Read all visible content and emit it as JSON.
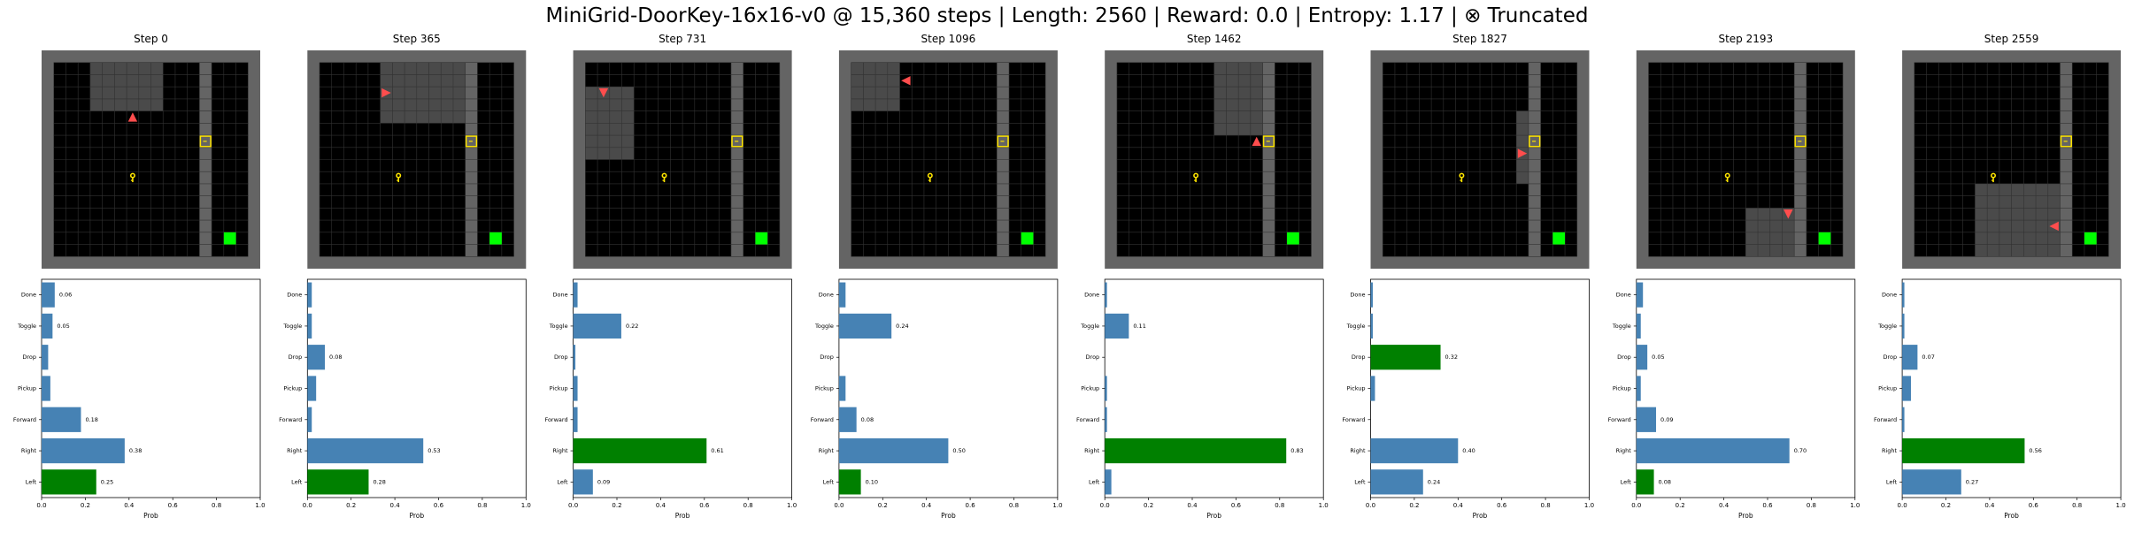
{
  "figure": {
    "title": "MiniGrid-DoorKey-16x16-v0 @ 15,360 steps | Length: 2560 | Reward: 0.0 | Entropy: 1.17 | ⊗ Truncated"
  },
  "colors": {
    "bar_default": "#4682b4",
    "bar_selected": "#008000",
    "wall": "#646464",
    "floor": "#000000",
    "view_floor": "#4a4a4a",
    "view_wall": "#a9a9a9",
    "grid_line": "#333333",
    "agent": "#ff4d4d",
    "key": "#ffe500",
    "door": "#ffe500",
    "goal": "#00ff00"
  },
  "env": {
    "grid_size": 16,
    "door_cell": [
      12,
      6
    ],
    "key_cell": [
      6,
      9
    ],
    "goal_cell": [
      14,
      14
    ],
    "wall_column": 12
  },
  "panels": [
    {
      "step_label": "Step 0",
      "agent": {
        "cell": [
          6,
          4
        ],
        "direction": "up"
      },
      "view": {
        "x0": 3,
        "y0": 0,
        "x1": 9,
        "y1": 4
      },
      "key_visible": true
    },
    {
      "step_label": "Step 365",
      "agent": {
        "cell": [
          5,
          2
        ],
        "direction": "right"
      },
      "view": {
        "x0": 5,
        "y0": 0,
        "x1": 12,
        "y1": 5
      },
      "key_visible": true
    },
    {
      "step_label": "Step 731",
      "agent": {
        "cell": [
          1,
          2
        ],
        "direction": "down"
      },
      "view": {
        "x0": 0,
        "y0": 2,
        "x1": 4,
        "y1": 8
      },
      "key_visible": true
    },
    {
      "step_label": "Step 1096",
      "agent": {
        "cell": [
          4,
          1
        ],
        "direction": "left"
      },
      "view": {
        "x0": 0,
        "y0": 0,
        "x1": 4,
        "y1": 4
      },
      "key_visible": true
    },
    {
      "step_label": "Step 1462",
      "agent": {
        "cell": [
          11,
          6
        ],
        "direction": "up"
      },
      "view": {
        "x0": 8,
        "y0": 0,
        "x1": 12,
        "y1": 6
      },
      "key_visible": true
    },
    {
      "step_label": "Step 1827",
      "agent": {
        "cell": [
          11,
          7
        ],
        "direction": "right"
      },
      "view": {
        "x0": 11,
        "y0": 4,
        "x1": 12,
        "y1": 10
      },
      "key_visible": true
    },
    {
      "step_label": "Step 2193",
      "agent": {
        "cell": [
          11,
          12
        ],
        "direction": "down"
      },
      "view": {
        "x0": 8,
        "y0": 12,
        "x1": 12,
        "y1": 16
      },
      "key_visible": true
    },
    {
      "step_label": "Step 2559",
      "agent": {
        "cell": [
          11,
          13
        ],
        "direction": "left"
      },
      "view": {
        "x0": 5,
        "y0": 10,
        "x1": 12,
        "y1": 16
      },
      "key_visible": true
    }
  ],
  "chart_data": {
    "type": "bar",
    "orientation": "horizontal",
    "categories": [
      "Left",
      "Right",
      "Forward",
      "Pickup",
      "Drop",
      "Toggle",
      "Done"
    ],
    "xlabel": "Prob",
    "xlim": [
      0,
      1
    ],
    "xticks": [
      "0.0",
      "0.2",
      "0.4",
      "0.6",
      "0.8",
      "1.0"
    ],
    "label_threshold": 0.05,
    "charts": [
      {
        "values": [
          0.25,
          0.38,
          0.18,
          0.04,
          0.03,
          0.05,
          0.06
        ],
        "selected": "Left"
      },
      {
        "values": [
          0.28,
          0.53,
          0.02,
          0.04,
          0.08,
          0.02,
          0.02
        ],
        "selected": "Left"
      },
      {
        "values": [
          0.09,
          0.61,
          0.02,
          0.02,
          0.01,
          0.22,
          0.02
        ],
        "selected": "Right"
      },
      {
        "values": [
          0.1,
          0.5,
          0.08,
          0.03,
          0.0,
          0.24,
          0.03
        ],
        "selected": "Left"
      },
      {
        "values": [
          0.03,
          0.83,
          0.01,
          0.01,
          0.0,
          0.11,
          0.01
        ],
        "selected": "Right"
      },
      {
        "values": [
          0.24,
          0.4,
          0.0,
          0.02,
          0.32,
          0.01,
          0.01
        ],
        "selected": "Drop"
      },
      {
        "values": [
          0.08,
          0.7,
          0.09,
          0.02,
          0.05,
          0.02,
          0.03
        ],
        "selected": "Left"
      },
      {
        "values": [
          0.27,
          0.56,
          0.01,
          0.04,
          0.07,
          0.01,
          0.01
        ],
        "selected": "Right"
      }
    ]
  }
}
